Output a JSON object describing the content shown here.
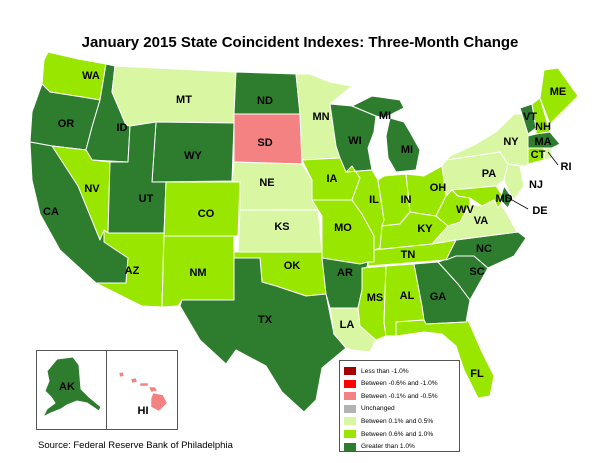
{
  "title": "January 2015 State Coincident Indexes: Three-Month Change",
  "source": "Source: Federal Reserve Bank of Philadelphia",
  "colors": {
    "lt_neg1": "#a40000",
    "neg06_neg1": "#ff0000",
    "neg01_neg05": "#f58282",
    "unchanged": "#b3b3b3",
    "p01_p05": "#d9f7a3",
    "p06_p1": "#99e600",
    "gt_p1": "#2e7d2e"
  },
  "legend": [
    {
      "label": "Less than -1.0%",
      "color": "#a40000"
    },
    {
      "label": "Between -0.6% and -1.0%",
      "color": "#ff0000"
    },
    {
      "label": "Between -0.1% and -0.5%",
      "color": "#f58282"
    },
    {
      "label": "Unchanged",
      "color": "#b3b3b3"
    },
    {
      "label": "Between 0.1% and 0.5%",
      "color": "#d9f7a3"
    },
    {
      "label": "Between 0.6% and 1.0%",
      "color": "#99e600"
    },
    {
      "label": "Greater than 1.0%",
      "color": "#2e7d2e"
    }
  ],
  "states": {
    "WA": "p06_p1",
    "OR": "gt_p1",
    "CA": "gt_p1",
    "ID": "gt_p1",
    "NV": "p06_p1",
    "MT": "p01_p05",
    "WY": "gt_p1",
    "UT": "gt_p1",
    "AZ": "p06_p1",
    "CO": "p06_p1",
    "NM": "p06_p1",
    "ND": "gt_p1",
    "SD": "neg01_neg05",
    "NE": "p01_p05",
    "KS": "p01_p05",
    "OK": "p06_p1",
    "TX": "gt_p1",
    "MN": "p01_p05",
    "IA": "p06_p1",
    "MO": "p06_p1",
    "AR": "gt_p1",
    "LA": "p01_p05",
    "WI": "gt_p1",
    "IL": "p06_p1",
    "MI": "gt_p1",
    "IN": "p06_p1",
    "OH": "p06_p1",
    "KY": "p06_p1",
    "TN": "p06_p1",
    "MS": "p06_p1",
    "AL": "p06_p1",
    "GA": "gt_p1",
    "FL": "p06_p1",
    "SC": "gt_p1",
    "NC": "gt_p1",
    "VA": "p01_p05",
    "WV": "p06_p1",
    "PA": "p01_p05",
    "NY": "p01_p05",
    "VT": "gt_p1",
    "NH": "p06_p1",
    "ME": "p06_p1",
    "MA": "gt_p1",
    "CT": "p06_p1",
    "RI": "p01_p05",
    "NJ": "p01_p05",
    "DE": "gt_p1",
    "MD": "p06_p1",
    "AK": "gt_p1",
    "HI": "neg01_neg05"
  },
  "labels": {
    "WA": "WA",
    "OR": "OR",
    "CA": "CA",
    "ID": "ID",
    "NV": "NV",
    "MT": "MT",
    "WY": "WY",
    "UT": "UT",
    "AZ": "AZ",
    "CO": "CO",
    "NM": "NM",
    "ND": "ND",
    "SD": "SD",
    "NE": "NE",
    "KS": "KS",
    "OK": "OK",
    "TX": "TX",
    "MN": "MN",
    "IA": "IA",
    "MO": "MO",
    "AR": "AR",
    "LA": "LA",
    "WI": "WI",
    "IL": "IL",
    "MI": "MI",
    "IN": "IN",
    "OH": "OH",
    "KY": "KY",
    "TN": "TN",
    "MS": "MS",
    "AL": "AL",
    "GA": "GA",
    "FL": "FL",
    "SC": "SC",
    "NC": "NC",
    "VA": "VA",
    "WV": "WV",
    "PA": "PA",
    "NY": "NY",
    "VT": "VT",
    "NH": "NH",
    "ME": "ME",
    "MA": "MA",
    "CT": "CT",
    "RI": "RI",
    "NJ": "NJ",
    "DE": "DE",
    "MD": "MD",
    "AK": "AK",
    "HI": "HI",
    "MI2": "MI"
  }
}
